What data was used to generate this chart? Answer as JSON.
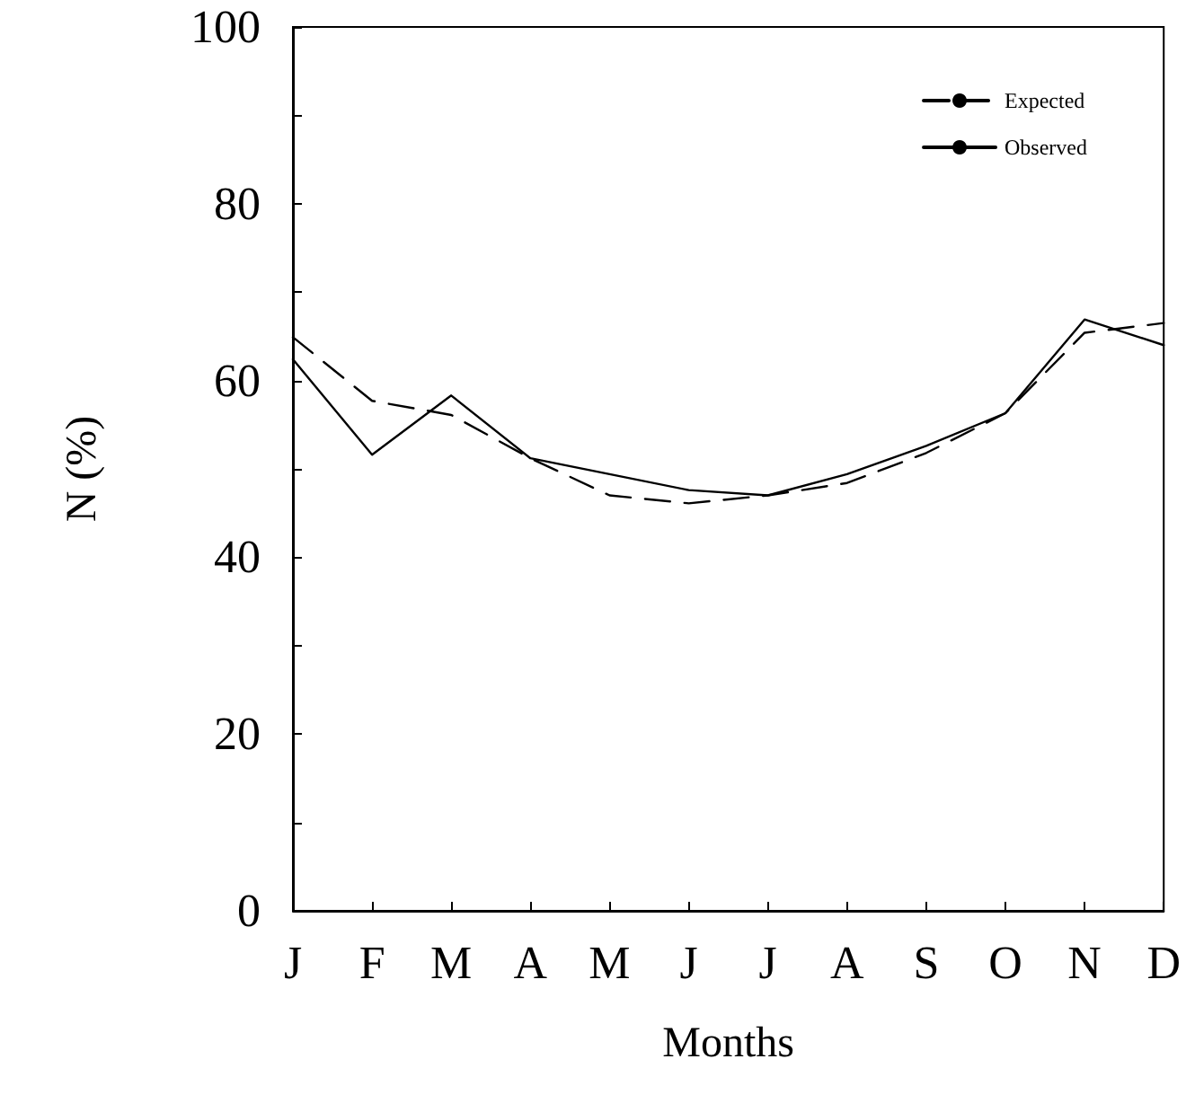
{
  "chart_data": {
    "type": "line",
    "xlabel": "Months",
    "ylabel": "N (%)",
    "categories": [
      "J",
      "F",
      "M",
      "A",
      "M",
      "J",
      "J",
      "A",
      "S",
      "O",
      "N",
      "D"
    ],
    "series": [
      {
        "name": "Expected",
        "color": "#000000",
        "line_style": "dashed",
        "values": [
          64.9,
          57.7,
          56.1,
          51.2,
          47.0,
          46.1,
          47.0,
          48.4,
          51.8,
          56.3,
          65.4,
          66.5
        ]
      },
      {
        "name": "Observed",
        "color": "#000000",
        "line_style": "solid",
        "values": [
          62.4,
          51.6,
          58.3,
          51.2,
          49.4,
          47.6,
          47.0,
          49.4,
          52.6,
          56.3,
          66.9,
          64.0
        ]
      }
    ],
    "ylim": [
      0,
      100
    ],
    "yticks": [
      0,
      {
        "value": 10,
        "label": null
      },
      20,
      {
        "value": 30,
        "label": null
      },
      40,
      {
        "value": 50,
        "label": null
      },
      60,
      {
        "value": 70,
        "label": null
      },
      80,
      {
        "value": 90,
        "label": null
      },
      100
    ],
    "legend": "top right",
    "grid": false,
    "marker": "none"
  }
}
